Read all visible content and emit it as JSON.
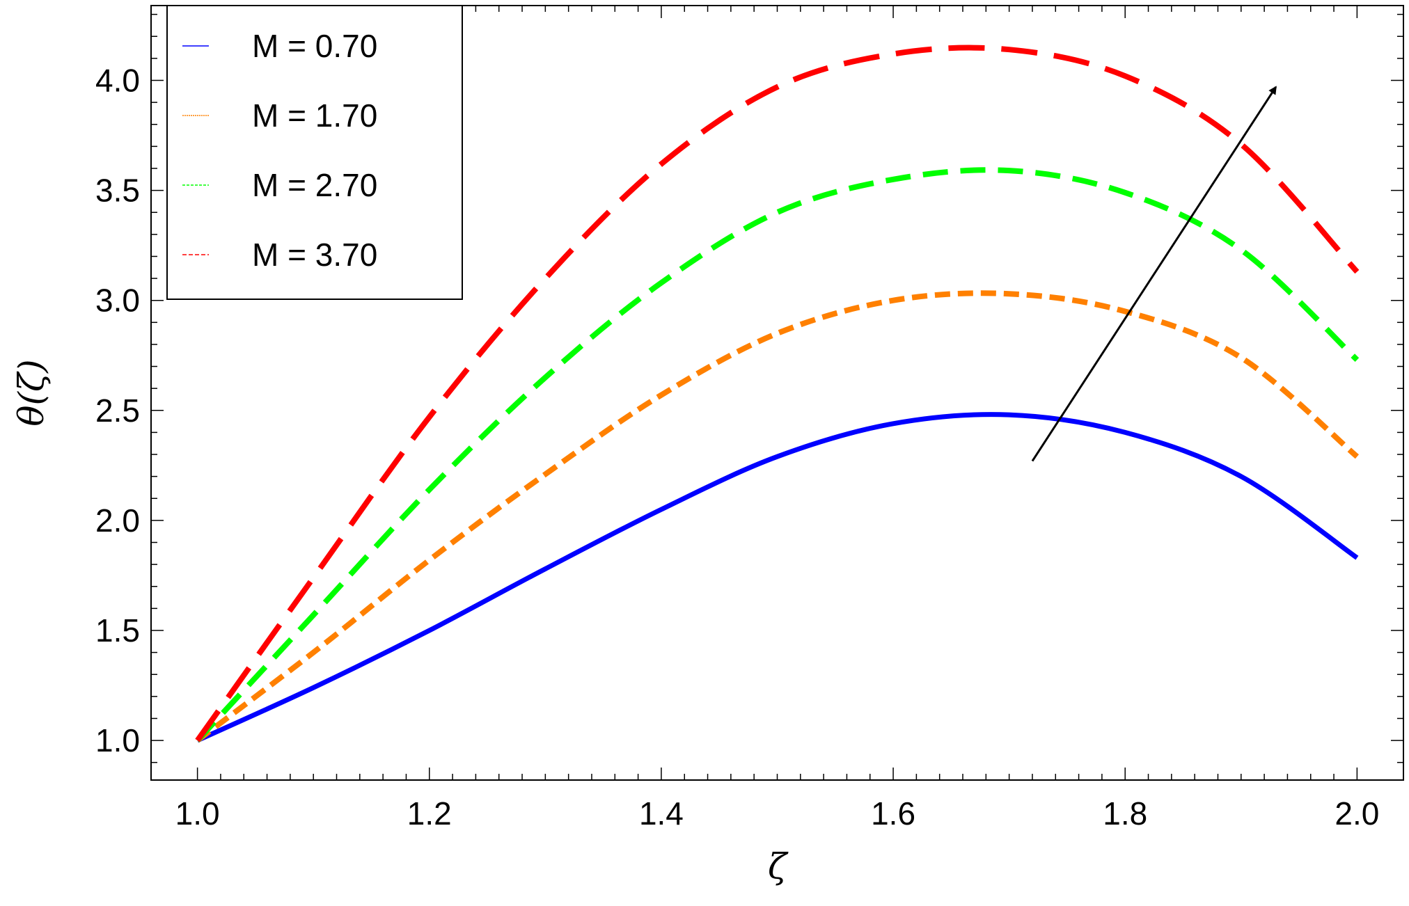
{
  "chart_data": {
    "type": "line",
    "title": "",
    "xlabel": "ζ",
    "ylabel": "θ(ζ)",
    "xlim": [
      0.96,
      2.04
    ],
    "ylim": [
      0.82,
      4.34
    ],
    "x_ticks": [
      1.0,
      1.2,
      1.4,
      1.6,
      1.8,
      2.0
    ],
    "x_tick_labels": [
      "1.0",
      "1.2",
      "1.4",
      "1.6",
      "1.8",
      "2.0"
    ],
    "y_ticks": [
      1.0,
      1.5,
      2.0,
      2.5,
      3.0,
      3.5,
      4.0
    ],
    "y_tick_labels": [
      "1.0",
      "1.5",
      "2.0",
      "2.5",
      "3.0",
      "3.5",
      "4.0"
    ],
    "grid": false,
    "legend_position": "top-left",
    "x": [
      1.0,
      1.1,
      1.2,
      1.3,
      1.4,
      1.5,
      1.6,
      1.7,
      1.8,
      1.9,
      2.0
    ],
    "series": [
      {
        "name": "M = 0.70",
        "color": "#0000ff",
        "style": "solid",
        "values": [
          1.0,
          1.24,
          1.5,
          1.78,
          2.05,
          2.29,
          2.44,
          2.48,
          2.4,
          2.2,
          1.83
        ]
      },
      {
        "name": "M = 1.70",
        "color": "#ff8000",
        "style": "dashed-short",
        "values": [
          1.0,
          1.4,
          1.82,
          2.21,
          2.57,
          2.85,
          3.0,
          3.03,
          2.95,
          2.74,
          2.29
        ]
      },
      {
        "name": "M = 2.70",
        "color": "#00ff00",
        "style": "dashed-medium",
        "values": [
          1.0,
          1.57,
          2.14,
          2.65,
          3.08,
          3.4,
          3.55,
          3.59,
          3.49,
          3.23,
          2.73
        ]
      },
      {
        "name": "M = 3.70",
        "color": "#ff0000",
        "style": "dashed-long",
        "values": [
          1.0,
          1.74,
          2.47,
          3.1,
          3.62,
          3.97,
          4.12,
          4.14,
          4.02,
          3.71,
          3.13
        ]
      }
    ],
    "annotations": [
      {
        "type": "arrow",
        "from": [
          1.72,
          2.27
        ],
        "to": [
          1.93,
          3.97
        ],
        "meaning": "increasing M"
      }
    ]
  }
}
